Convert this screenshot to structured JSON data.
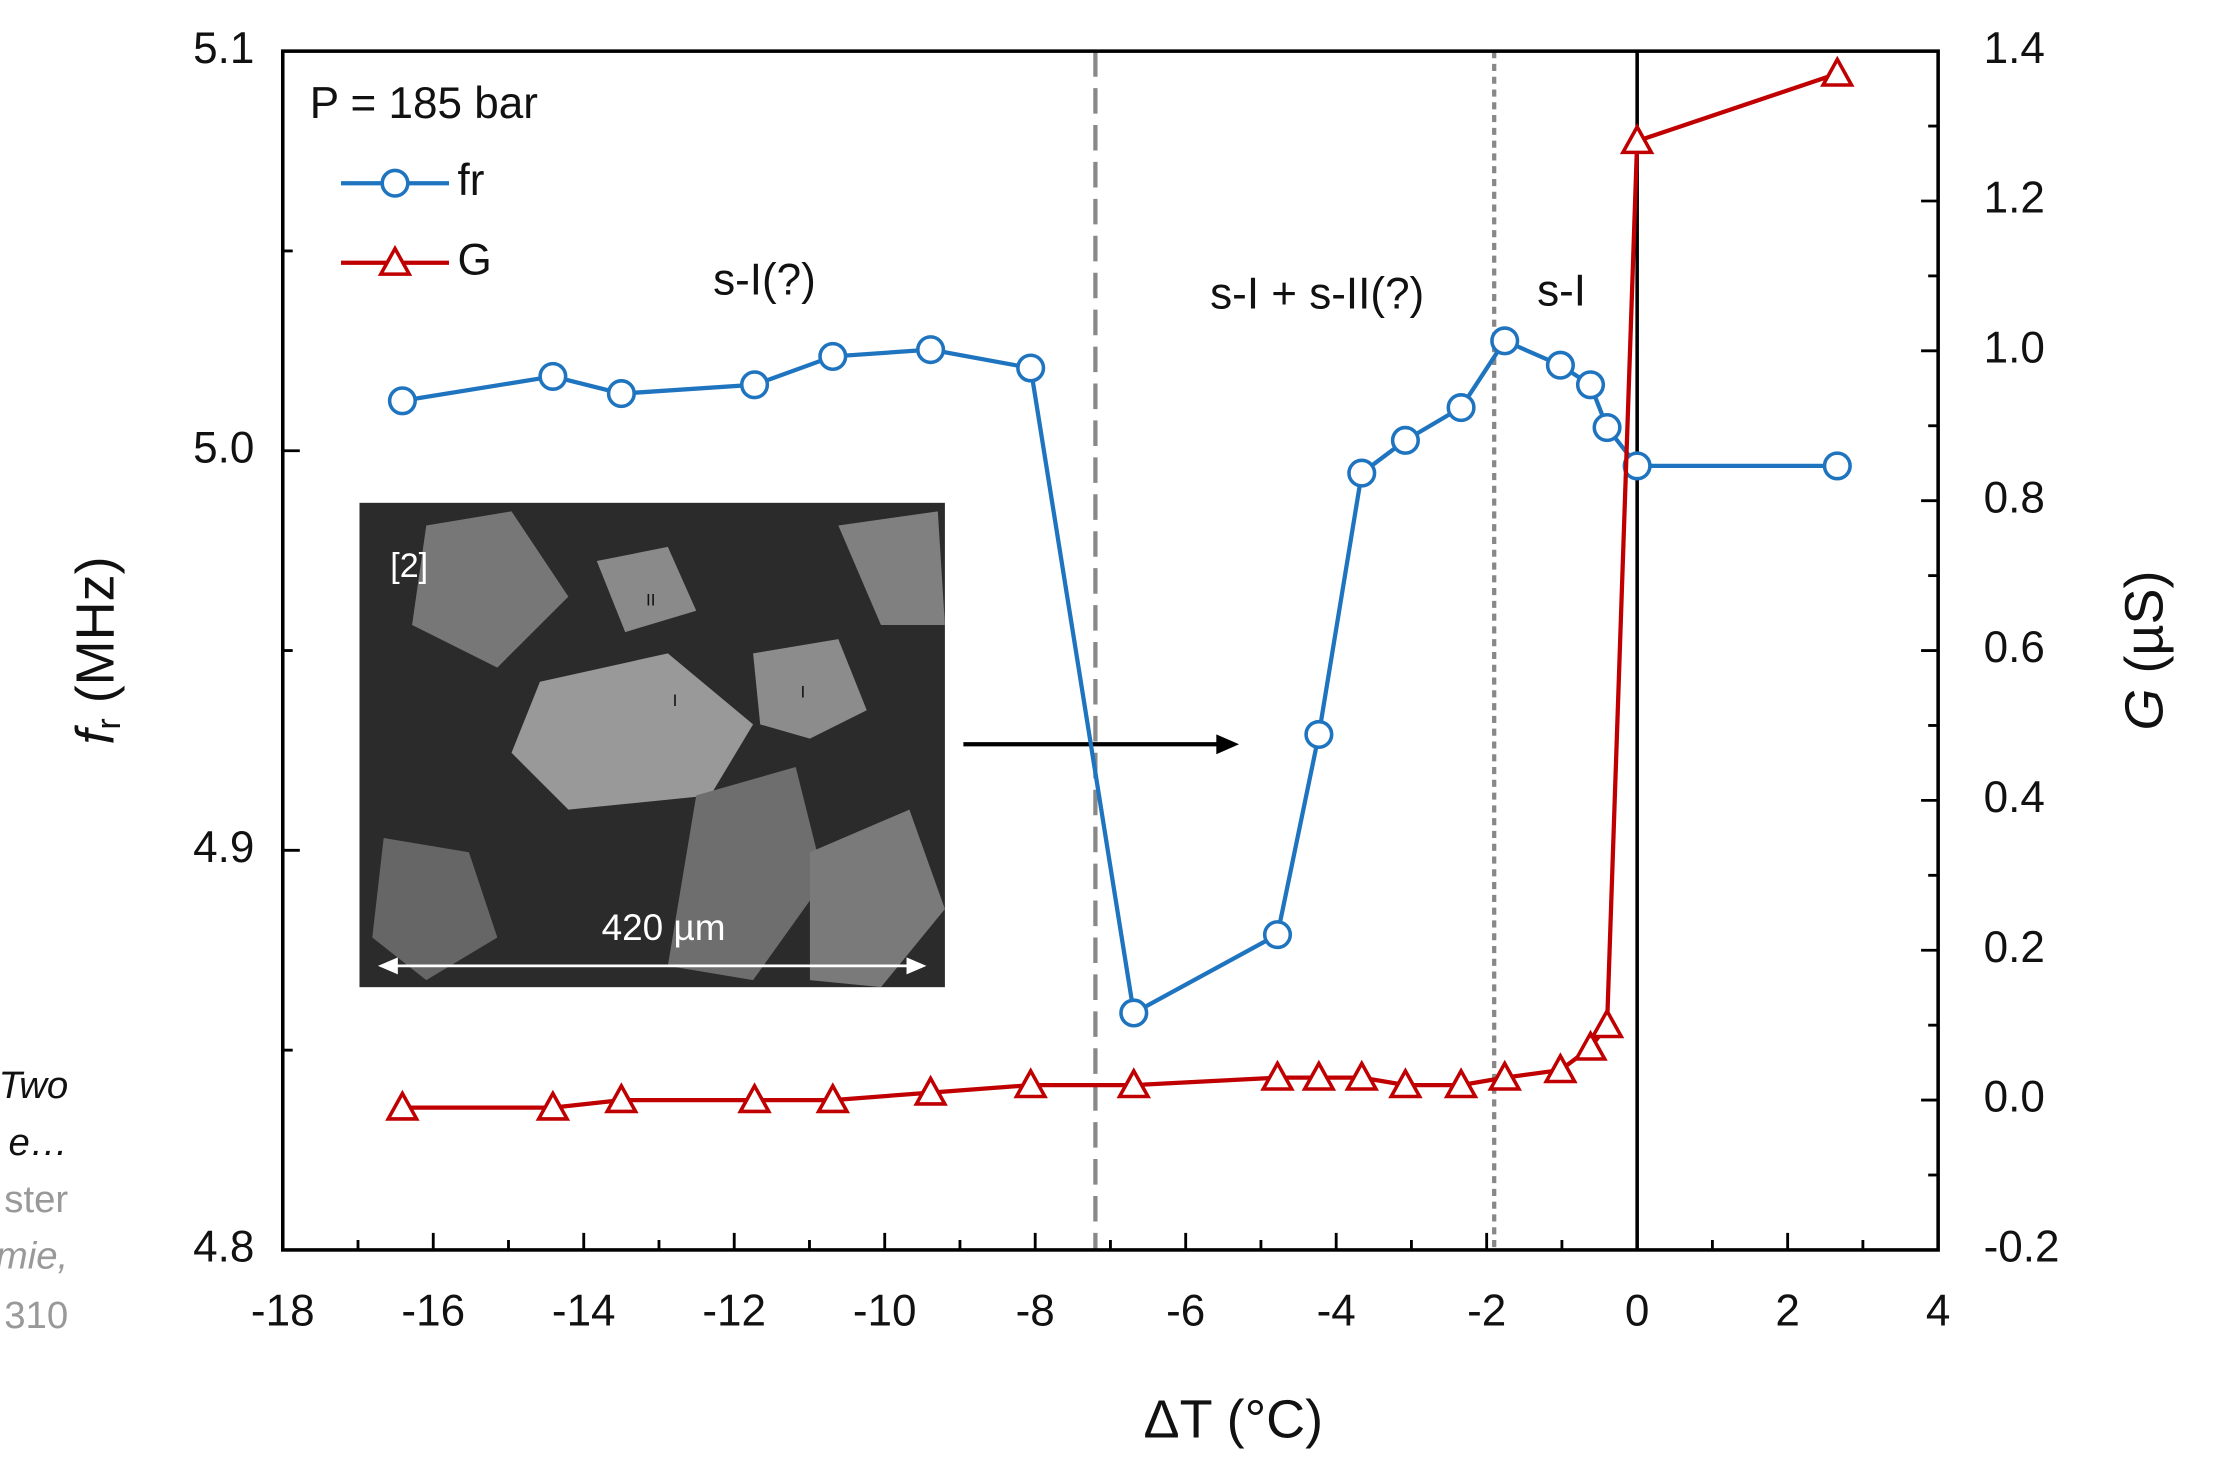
{
  "chart_data": {
    "type": "line",
    "x_label": "ΔT (°C)",
    "y_label": {
      "symbol": "f",
      "subscript": "r",
      "unit": " (MHz)"
    },
    "y2_label": {
      "symbol": "G",
      "unit": " (µS)"
    },
    "annotations": [
      "P = 185 bar",
      "s-I(?)",
      "s-I + s-II(?)",
      "s-I"
    ],
    "inset": {
      "tag": "[2]",
      "scale": "420 µm",
      "grain_labels": [
        "II",
        "I",
        "I"
      ]
    },
    "reference_lines": [
      -7.2,
      -1.9,
      0
    ],
    "xlim": [
      -18,
      4
    ],
    "xticks": [
      -18,
      -16,
      -14,
      -12,
      -10,
      -8,
      -6,
      -4,
      -2,
      0,
      2,
      4
    ],
    "ylim": [
      4.8,
      5.1
    ],
    "yticks": [
      4.8,
      4.9,
      {
        "value": 5.0,
        "label": "5.0"
      },
      5.1
    ],
    "y2lim": [
      -0.2,
      1.4
    ],
    "y2ticks": [
      -0.2,
      {
        "value": 0,
        "label": "0.0"
      },
      0.2,
      0.4,
      0.6,
      0.8,
      {
        "value": 1.0,
        "label": "1.0"
      },
      1.2,
      1.4
    ],
    "series": [
      {
        "name": "fr",
        "color": "#1f74c0",
        "marker": "circle",
        "x": [
          -16.41,
          -14.41,
          -13.5,
          -11.73,
          -10.69,
          -9.39,
          -8.06,
          -6.69,
          -4.78,
          -4.23,
          -3.66,
          -3.08,
          -2.34,
          -1.76,
          -1.02,
          -0.62,
          -0.4,
          0,
          2.66
        ],
        "values": [
          5.0125,
          5.0186,
          5.0143,
          5.0165,
          5.0236,
          5.0253,
          5.0207,
          4.8593,
          4.8789,
          4.929,
          4.9944,
          5.0026,
          5.0108,
          5.0275,
          5.0214,
          5.0165,
          5.0058,
          4.9962,
          4.9962
        ]
      },
      {
        "name": "G",
        "color": "#c00000",
        "marker": "triangle",
        "axis": "y2",
        "x": [
          -16.41,
          -14.41,
          -13.5,
          -11.73,
          -10.69,
          -9.39,
          -8.06,
          -6.69,
          -4.78,
          -4.23,
          -3.66,
          -3.08,
          -2.34,
          -1.76,
          -1.02,
          -0.62,
          -0.4,
          0,
          2.66
        ],
        "values": [
          -0.01,
          -0.01,
          0,
          0,
          0,
          0.01,
          0.02,
          0.02,
          0.03,
          0.03,
          0.03,
          0.02,
          0.02,
          0.03,
          0.04,
          0.07,
          0.1,
          1.28,
          1.37
        ]
      }
    ]
  },
  "left_fragments": [
    "Two",
    "e…",
    "ster",
    "mie,",
    "310"
  ]
}
